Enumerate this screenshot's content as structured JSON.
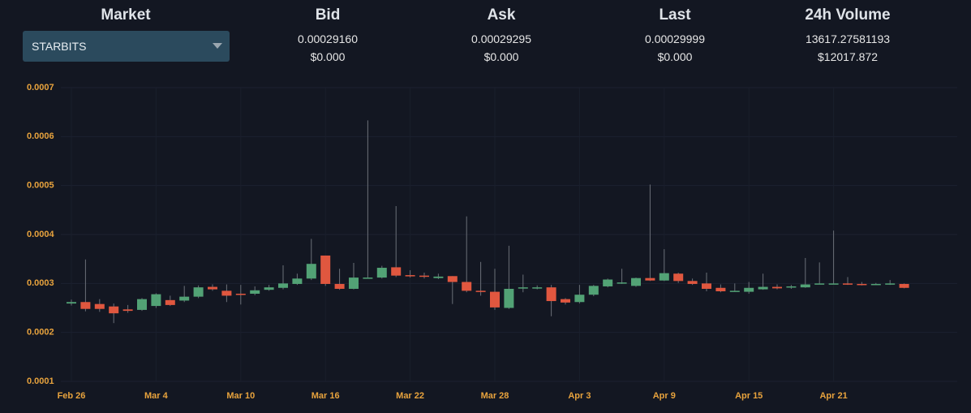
{
  "header": {
    "market": {
      "label": "Market",
      "selected": "STARBITS"
    },
    "columns": [
      {
        "label": "Bid",
        "value": "0.00029160",
        "usd": "$0.000"
      },
      {
        "label": "Ask",
        "value": "0.00029295",
        "usd": "$0.000"
      },
      {
        "label": "Last",
        "value": "0.00029999",
        "usd": "$0.000"
      },
      {
        "label": "24h Volume",
        "value": "13617.27581193",
        "usd": "$12017.872"
      }
    ]
  },
  "chart_data": {
    "type": "candlestick",
    "categories": [
      "Feb 26",
      null,
      null,
      null,
      null,
      null,
      "Mar 4",
      null,
      null,
      null,
      null,
      null,
      "Mar 10",
      null,
      null,
      null,
      null,
      null,
      "Mar 16",
      null,
      null,
      null,
      null,
      null,
      "Mar 22",
      null,
      null,
      null,
      null,
      null,
      "Mar 28",
      null,
      null,
      null,
      null,
      null,
      "Apr 3",
      null,
      null,
      null,
      null,
      null,
      "Apr 9",
      null,
      null,
      null,
      null,
      null,
      "Apr 15",
      null,
      null,
      null,
      null,
      null,
      "Apr 21",
      null,
      null,
      null,
      null,
      null
    ],
    "open": [
      0.000259,
      0.000262,
      0.000258,
      0.000253,
      0.000247,
      0.000246,
      0.000254,
      0.000266,
      0.000265,
      0.000273,
      0.000293,
      0.000285,
      0.000279,
      0.000279,
      0.000287,
      0.000291,
      0.000299,
      0.00031,
      0.000357,
      0.000299,
      0.000289,
      0.000311,
      0.000312,
      0.000333,
      0.000317,
      0.000316,
      0.000311,
      0.000315,
      0.000303,
      0.000285,
      0.000283,
      0.00025,
      0.00029,
      0.000291,
      0.000292,
      0.000268,
      0.000262,
      0.000277,
      0.000294,
      0.000301,
      0.000295,
      0.000311,
      0.000306,
      0.00032,
      0.000305,
      0.0003,
      0.000291,
      0.000285,
      0.000283,
      0.000288,
      0.000293,
      0.000293,
      0.000292,
      0.000299,
      0.000299,
      0.0003,
      0.000299,
      0.000299,
      0.000299,
      0.000299
    ],
    "high": [
      0.000267,
      0.000349,
      0.000268,
      0.000259,
      0.000256,
      0.00027,
      0.00028,
      0.000275,
      0.000295,
      0.000296,
      0.000298,
      0.000298,
      0.000297,
      0.000294,
      0.000297,
      0.000337,
      0.00032,
      0.000391,
      0.000357,
      0.00033,
      0.000342,
      0.000633,
      0.000336,
      0.000458,
      0.000327,
      0.000322,
      0.00032,
      0.000315,
      0.000437,
      0.000344,
      0.00033,
      0.000377,
      0.000318,
      0.000296,
      0.000297,
      0.00027,
      0.000297,
      0.000297,
      0.00031,
      0.00033,
      0.000312,
      0.000502,
      0.00037,
      0.000322,
      0.00031,
      0.000322,
      0.000298,
      0.0003,
      0.000303,
      0.00032,
      0.000298,
      0.000297,
      0.000352,
      0.000343,
      0.000408,
      0.000313,
      0.000303,
      0.000301,
      0.000307,
      0.0003
    ],
    "low": [
      0.000255,
      0.000243,
      0.000242,
      0.000219,
      0.00024,
      0.000244,
      0.00025,
      0.000254,
      0.000262,
      0.00027,
      0.000285,
      0.000262,
      0.000257,
      0.000276,
      0.000285,
      0.000288,
      0.000297,
      0.000307,
      0.000295,
      0.000287,
      0.000288,
      0.00031,
      0.00031,
      0.000313,
      0.000312,
      0.00031,
      0.000309,
      0.000258,
      0.000282,
      0.000275,
      0.000246,
      0.000248,
      0.000282,
      0.000288,
      0.000233,
      0.000257,
      0.000259,
      0.000274,
      0.000292,
      0.000299,
      0.000293,
      0.000305,
      0.000305,
      0.000301,
      0.000297,
      0.000284,
      0.000282,
      0.000283,
      0.000279,
      0.000287,
      0.000288,
      0.000289,
      0.000291,
      0.000298,
      0.000298,
      0.000297,
      0.000296,
      0.000297,
      0.000297,
      0.00029
    ],
    "close": [
      0.000262,
      0.000248,
      0.000248,
      0.000239,
      0.000244,
      0.000268,
      0.000278,
      0.000256,
      0.000273,
      0.000292,
      0.000288,
      0.000275,
      0.000277,
      0.000286,
      0.000292,
      0.0003,
      0.00031,
      0.00034,
      0.000299,
      0.000289,
      0.000312,
      0.000312,
      0.000332,
      0.000316,
      0.000316,
      0.000315,
      0.000314,
      0.000303,
      0.000285,
      0.000284,
      0.000251,
      0.000289,
      0.000292,
      0.000292,
      0.000264,
      0.000261,
      0.000277,
      0.000295,
      0.000308,
      0.000302,
      0.000311,
      0.000306,
      0.000321,
      0.000305,
      0.000299,
      0.000289,
      0.000284,
      0.000285,
      0.000291,
      0.000293,
      0.00029,
      0.000294,
      0.000298,
      0.0003,
      0.0003,
      0.000299,
      0.000298,
      0.000299,
      0.0003,
      0.000291
    ],
    "up_color": "#52a275",
    "down_color": "#e0573f",
    "ylim": [
      0.0001,
      0.0007
    ],
    "yticks": [
      0.0001,
      0.0002,
      0.0003,
      0.0004,
      0.0005,
      0.0006,
      0.0007
    ],
    "grid": true
  }
}
